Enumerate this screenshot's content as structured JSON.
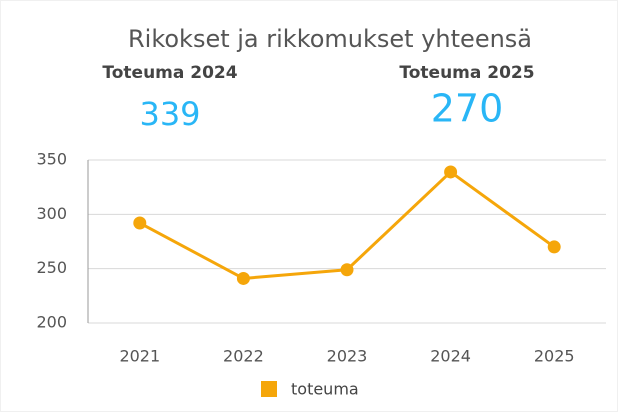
{
  "chart_data": {
    "type": "line",
    "title": "Rikokset ja rikkomukset yhteensä",
    "kpis": [
      {
        "label": "Toteuma 2024",
        "value": 339
      },
      {
        "label": "Toteuma 2025",
        "value": 270
      }
    ],
    "categories": [
      "2021",
      "2022",
      "2023",
      "2024",
      "2025"
    ],
    "series": [
      {
        "name": "toteuma",
        "color": "#f5a60a",
        "values": [
          292,
          241,
          249,
          339,
          270
        ]
      }
    ],
    "ylim": [
      200,
      350
    ],
    "yticks": [
      200,
      250,
      300,
      350
    ],
    "grid": true,
    "legend": "bottom"
  }
}
